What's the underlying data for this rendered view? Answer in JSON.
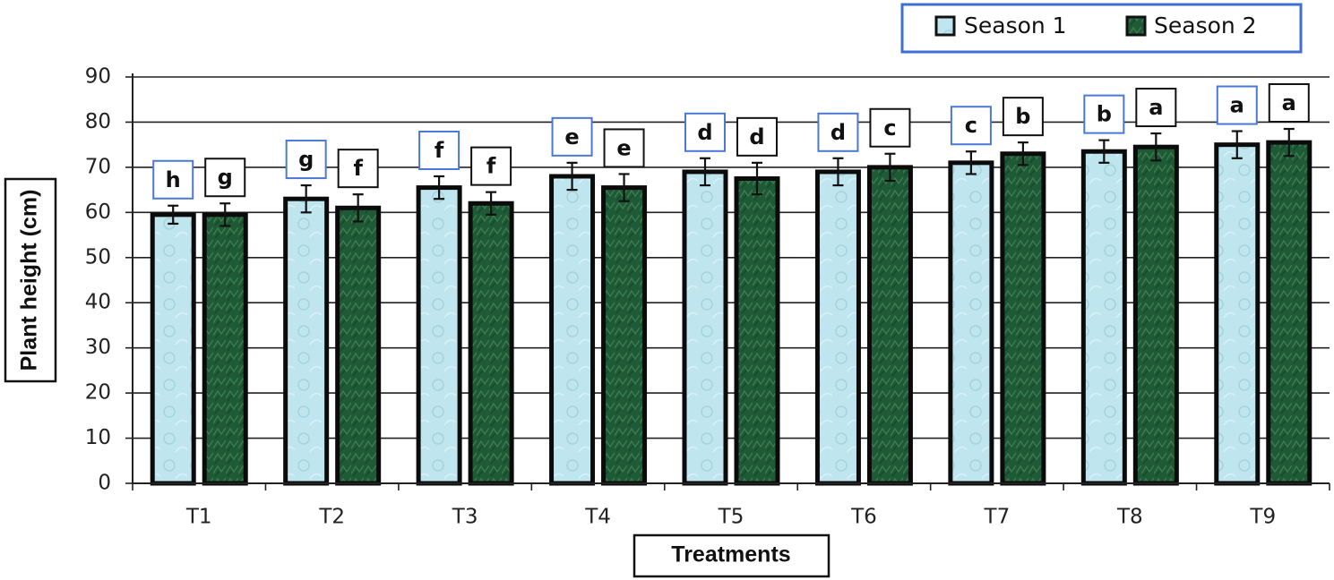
{
  "chart_data": {
    "type": "bar",
    "xlabel": "Treatments",
    "ylabel": "Plant height (cm)",
    "ylim": [
      0,
      90
    ],
    "yticks": [
      0,
      10,
      20,
      30,
      40,
      50,
      60,
      70,
      80,
      90
    ],
    "grid": true,
    "legend_position": "top-right",
    "categories": [
      "T1",
      "T2",
      "T3",
      "T4",
      "T5",
      "T6",
      "T7",
      "T8",
      "T9"
    ],
    "series": [
      {
        "name": "Season 1",
        "values": [
          59.5,
          63,
          65.5,
          68,
          69,
          69,
          71,
          73.5,
          75
        ],
        "errors": [
          2,
          3,
          2.5,
          3,
          3,
          3,
          2.5,
          2.5,
          3
        ],
        "letters": [
          "h",
          "g",
          "f",
          "e",
          "d",
          "d",
          "c",
          "b",
          "a"
        ],
        "color": "#bfe6ef",
        "label_box_color": "#4a78d6"
      },
      {
        "name": "Season 2",
        "values": [
          59.5,
          61,
          62,
          65.5,
          67.5,
          70,
          73,
          74.5,
          75.5
        ],
        "errors": [
          2.5,
          3,
          2.5,
          3,
          3.5,
          3,
          2.5,
          3,
          3
        ],
        "letters": [
          "g",
          "f",
          "f",
          "e",
          "d",
          "c",
          "b",
          "a",
          "a"
        ],
        "color": "#1f5a36",
        "label_box_color": "#111111"
      }
    ]
  }
}
